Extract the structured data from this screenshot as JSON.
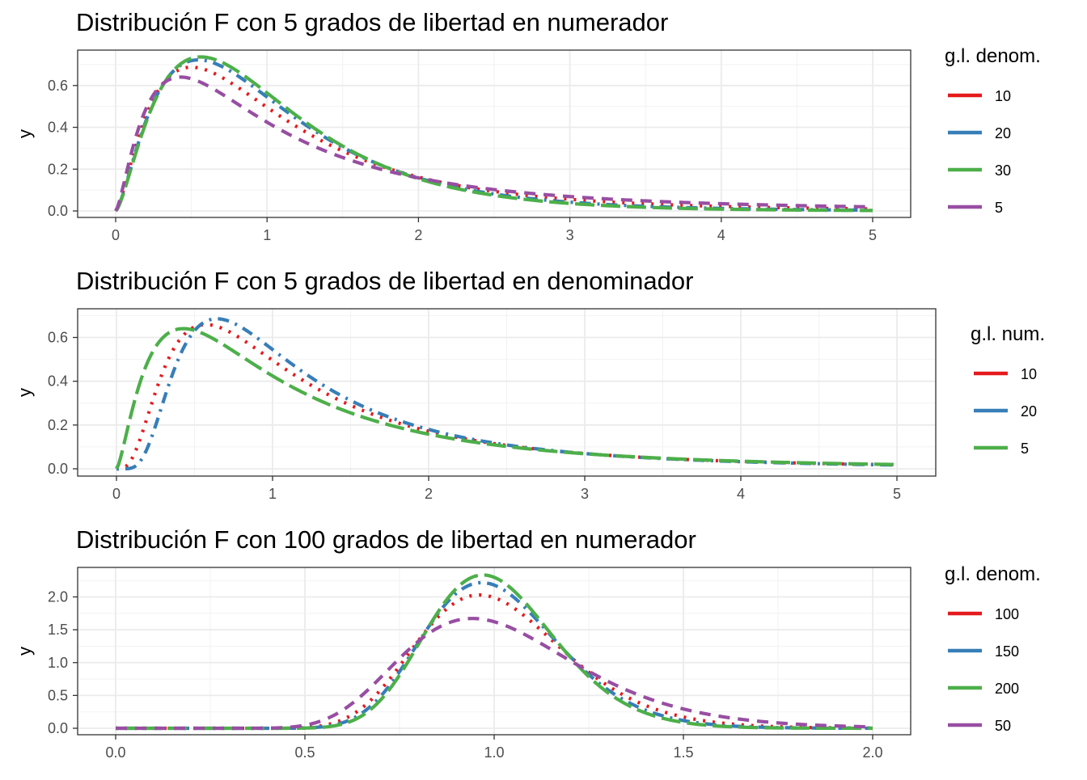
{
  "colors": {
    "red": "#E41A1C",
    "blue": "#377EB8",
    "green": "#4DAF4A",
    "purple": "#984EA3",
    "panel_border": "#333333",
    "grid": "#ebebeb"
  },
  "chart_data": [
    {
      "type": "line",
      "distribution": "F",
      "title": "Distribución F con 5 grados de libertad en numerador",
      "xlabel": "",
      "ylabel": "y",
      "xlim": [
        0,
        5
      ],
      "ylim": [
        0,
        0.75
      ],
      "x_ticks": [
        0,
        1,
        2,
        3,
        4,
        5
      ],
      "x_tick_labels": [
        "0",
        "1",
        "2",
        "3",
        "4",
        "5"
      ],
      "y_ticks": [
        0,
        0.2,
        0.4,
        0.6
      ],
      "y_tick_labels": [
        "0.0",
        "0.2",
        "0.4",
        "0.6"
      ],
      "grid": true,
      "legend_position": "right",
      "legend_title": "g.l. denom.",
      "series": [
        {
          "name": "10",
          "df1": 5,
          "df2": 10,
          "color": "#E41A1C",
          "linetype": "dotted"
        },
        {
          "name": "20",
          "df1": 5,
          "df2": 20,
          "color": "#377EB8",
          "linetype": "dashdot"
        },
        {
          "name": "30",
          "df1": 5,
          "df2": 30,
          "color": "#4DAF4A",
          "linetype": "longdash"
        },
        {
          "name": "5",
          "df1": 5,
          "df2": 5,
          "color": "#984EA3",
          "linetype": "dashed"
        }
      ]
    },
    {
      "type": "line",
      "distribution": "F",
      "title": "Distribución F con 5 grados de libertad en denominador",
      "xlabel": "",
      "ylabel": "y",
      "xlim": [
        0,
        5
      ],
      "ylim": [
        0,
        0.72
      ],
      "x_ticks": [
        0,
        1,
        2,
        3,
        4,
        5
      ],
      "x_tick_labels": [
        "0",
        "1",
        "2",
        "3",
        "4",
        "5"
      ],
      "y_ticks": [
        0,
        0.2,
        0.4,
        0.6
      ],
      "y_tick_labels": [
        "0.0",
        "0.2",
        "0.4",
        "0.6"
      ],
      "grid": true,
      "legend_position": "right",
      "legend_title": "g.l. num.",
      "series": [
        {
          "name": "10",
          "df1": 10,
          "df2": 5,
          "color": "#E41A1C",
          "linetype": "dotted"
        },
        {
          "name": "20",
          "df1": 20,
          "df2": 5,
          "color": "#377EB8",
          "linetype": "dashdot"
        },
        {
          "name": "5",
          "df1": 5,
          "df2": 5,
          "color": "#4DAF4A",
          "linetype": "longdash"
        }
      ]
    },
    {
      "type": "line",
      "distribution": "F",
      "title": "Distribución F con 100 grados de libertad en numerador",
      "xlabel": "",
      "ylabel": "y",
      "xlim": [
        0,
        2
      ],
      "ylim": [
        0,
        2.4
      ],
      "x_ticks": [
        0,
        0.5,
        1,
        1.5,
        2
      ],
      "x_tick_labels": [
        "0.0",
        "0.5",
        "1.0",
        "1.5",
        "2.0"
      ],
      "y_ticks": [
        0,
        0.5,
        1,
        1.5,
        2
      ],
      "y_tick_labels": [
        "0.0",
        "0.5",
        "1.0",
        "1.5",
        "2.0"
      ],
      "grid": true,
      "legend_position": "right",
      "legend_title": "g.l. denom.",
      "series": [
        {
          "name": "100",
          "df1": 100,
          "df2": 100,
          "color": "#E41A1C",
          "linetype": "dotted"
        },
        {
          "name": "150",
          "df1": 100,
          "df2": 150,
          "color": "#377EB8",
          "linetype": "dashdot"
        },
        {
          "name": "200",
          "df1": 100,
          "df2": 200,
          "color": "#4DAF4A",
          "linetype": "longdash"
        },
        {
          "name": "50",
          "df1": 100,
          "df2": 50,
          "color": "#984EA3",
          "linetype": "dashed"
        }
      ]
    }
  ]
}
